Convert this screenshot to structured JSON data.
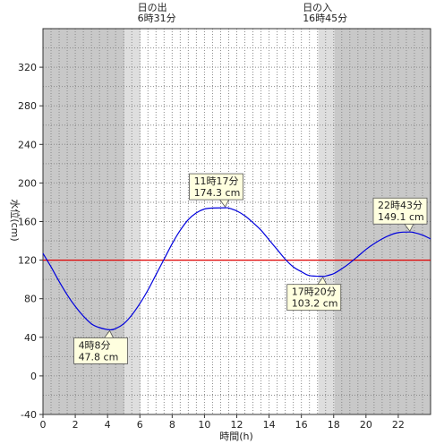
{
  "chart_data": {
    "type": "line",
    "xlabel": "時間(h)",
    "ylabel": "水位(cm)",
    "xlim": [
      0,
      24
    ],
    "ylim": [
      -40,
      360
    ],
    "x_ticks": [
      0,
      2,
      4,
      6,
      8,
      10,
      12,
      14,
      16,
      18,
      20,
      22
    ],
    "y_ticks": [
      -40,
      0,
      40,
      80,
      120,
      160,
      200,
      240,
      280,
      320
    ],
    "reference_line": {
      "value": 120,
      "color": "#e00000"
    },
    "series_color": "#0000dd",
    "series": [
      {
        "x": [
          0,
          0.5,
          1,
          1.5,
          2,
          2.5,
          3,
          3.5,
          4.133,
          4.5,
          5,
          5.5,
          6,
          6.5,
          7,
          7.5,
          8,
          8.5,
          9,
          9.5,
          10,
          10.5,
          11.283,
          11.5,
          12,
          12.5,
          13,
          13.5,
          14,
          14.5,
          15,
          15.5,
          16,
          16.5,
          17.333,
          17.5,
          18,
          18.5,
          19,
          19.5,
          20,
          20.5,
          21,
          21.5,
          22,
          22.717,
          23,
          23.5,
          24
        ],
        "y": [
          127,
          113,
          98,
          84,
          72,
          62,
          54,
          50,
          47.8,
          49,
          54,
          63,
          75,
          89,
          105,
          121,
          137,
          151,
          162,
          169,
          173,
          174,
          174.3,
          174,
          171,
          166,
          159,
          151,
          141,
          131,
          121,
          113,
          108,
          104,
          103.2,
          103.5,
          106,
          111,
          117,
          124,
          131,
          137,
          142,
          146,
          148.5,
          149.1,
          148.5,
          146,
          142
        ]
      }
    ],
    "shading": {
      "night_color": "#c8c8c8",
      "twilight_color": "#dedede",
      "day_color": "#ffffff",
      "bands": [
        {
          "from": 0,
          "to": 5.05,
          "kind": "night"
        },
        {
          "from": 5.05,
          "to": 6.05,
          "kind": "twilight"
        },
        {
          "from": 6.05,
          "to": 17.05,
          "kind": "day"
        },
        {
          "from": 17.05,
          "to": 18.05,
          "kind": "twilight"
        },
        {
          "from": 18.05,
          "to": 24,
          "kind": "night"
        }
      ]
    },
    "sun_events": [
      {
        "title": "日の出",
        "time": "6時31分",
        "x": 6.52
      },
      {
        "title": "日の入",
        "time": "16時45分",
        "x": 16.75
      }
    ],
    "annotations": [
      {
        "time": "4時8分",
        "value": "47.8 cm",
        "x": 4.133,
        "y": 47.8,
        "pos": "below"
      },
      {
        "time": "11時17分",
        "value": "174.3 cm",
        "x": 11.283,
        "y": 174.3,
        "pos": "above"
      },
      {
        "time": "17時20分",
        "value": "103.2 cm",
        "x": 17.333,
        "y": 103.2,
        "pos": "below"
      },
      {
        "time": "22時43分",
        "value": "149.1 cm",
        "x": 22.717,
        "y": 149.1,
        "pos": "above"
      }
    ]
  }
}
